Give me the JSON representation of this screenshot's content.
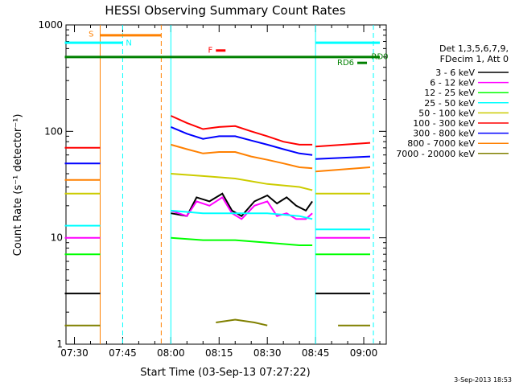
{
  "chart_data": {
    "type": "line",
    "title": "HESSI Observing Summary Count Rates",
    "xlabel": "Start Time (03-Sep-13 07:27:22)",
    "ylabel": "Count Rate (s⁻¹ detector⁻¹)",
    "yscale": "log",
    "ylim": [
      1,
      1000
    ],
    "xlim": [
      "07:27:22",
      "09:07:00"
    ],
    "grid": false,
    "legend_position": "right",
    "x_ticks": [
      "07:30",
      "07:45",
      "08:00",
      "08:15",
      "08:30",
      "08:45",
      "09:00"
    ],
    "y_ticks": [
      "1",
      "10",
      "100",
      "1000"
    ],
    "legend_header": [
      "Det 1,3,5,6,7,9,",
      "FDecim 1, Att 0"
    ],
    "series": [
      {
        "name": "3 - 6 keV",
        "color": "#000000",
        "segments": [
          {
            "x": [
              "07:27",
              "07:38"
            ],
            "y": [
              3.0,
              3.0
            ]
          },
          {
            "x": [
              "08:00",
              "08:05",
              "08:08",
              "08:12",
              "08:16",
              "08:19",
              "08:22",
              "08:26",
              "08:30",
              "08:33",
              "08:36",
              "08:39",
              "08:42",
              "08:44"
            ],
            "y": [
              17,
              16,
              24,
              22,
              26,
              18,
              16,
              22,
              25,
              21,
              24,
              20,
              18,
              22
            ]
          },
          {
            "x": [
              "08:45",
              "09:02"
            ],
            "y": [
              3.0,
              3.0
            ]
          }
        ]
      },
      {
        "name": "6 - 12 keV",
        "color": "#ff00ff",
        "segments": [
          {
            "x": [
              "07:27",
              "07:38"
            ],
            "y": [
              10,
              10
            ]
          },
          {
            "x": [
              "08:00",
              "08:05",
              "08:08",
              "08:12",
              "08:16",
              "08:19",
              "08:22",
              "08:26",
              "08:30",
              "08:33",
              "08:36",
              "08:39",
              "08:42",
              "08:44"
            ],
            "y": [
              18,
              16,
              22,
              20,
              24,
              17,
              15,
              20,
              22,
              16,
              17,
              15,
              15,
              17
            ]
          },
          {
            "x": [
              "08:45",
              "09:02"
            ],
            "y": [
              10,
              10
            ]
          }
        ]
      },
      {
        "name": "12 - 25 keV",
        "color": "#00ff00",
        "segments": [
          {
            "x": [
              "07:27",
              "07:38"
            ],
            "y": [
              7,
              7
            ]
          },
          {
            "x": [
              "08:00",
              "08:10",
              "08:20",
              "08:30",
              "08:40",
              "08:44"
            ],
            "y": [
              10,
              9.5,
              9.5,
              9,
              8.5,
              8.5
            ]
          },
          {
            "x": [
              "08:45",
              "09:02"
            ],
            "y": [
              7,
              7
            ]
          }
        ]
      },
      {
        "name": "25 - 50 keV",
        "color": "#00ffff",
        "segments": [
          {
            "x": [
              "07:27",
              "07:38"
            ],
            "y": [
              13,
              13
            ]
          },
          {
            "x": [
              "08:00",
              "08:10",
              "08:20",
              "08:30",
              "08:40",
              "08:44"
            ],
            "y": [
              18,
              17,
              17,
              17,
              16,
              15
            ]
          },
          {
            "x": [
              "08:45",
              "09:02"
            ],
            "y": [
              12,
              12
            ]
          }
        ]
      },
      {
        "name": "50 - 100 keV",
        "color": "#cccc00",
        "segments": [
          {
            "x": [
              "07:27",
              "07:38"
            ],
            "y": [
              26,
              26
            ]
          },
          {
            "x": [
              "08:00",
              "08:10",
              "08:20",
              "08:30",
              "08:40",
              "08:44"
            ],
            "y": [
              40,
              38,
              36,
              32,
              30,
              28
            ]
          },
          {
            "x": [
              "08:45",
              "09:02"
            ],
            "y": [
              26,
              26
            ]
          }
        ]
      },
      {
        "name": "100 - 300 keV",
        "color": "#ff0000",
        "segments": [
          {
            "x": [
              "07:27",
              "07:38"
            ],
            "y": [
              70,
              70
            ]
          },
          {
            "x": [
              "08:00",
              "08:05",
              "08:10",
              "08:15",
              "08:20",
              "08:25",
              "08:30",
              "08:35",
              "08:40",
              "08:44"
            ],
            "y": [
              140,
              120,
              105,
              110,
              112,
              100,
              90,
              80,
              75,
              75
            ]
          },
          {
            "x": [
              "08:45",
              "09:02"
            ],
            "y": [
              72,
              78
            ]
          }
        ]
      },
      {
        "name": "300 - 800 keV",
        "color": "#0000ff",
        "segments": [
          {
            "x": [
              "07:27",
              "07:38"
            ],
            "y": [
              50,
              50
            ]
          },
          {
            "x": [
              "08:00",
              "08:05",
              "08:10",
              "08:15",
              "08:20",
              "08:25",
              "08:30",
              "08:35",
              "08:40",
              "08:44"
            ],
            "y": [
              110,
              95,
              85,
              90,
              90,
              82,
              75,
              68,
              62,
              60
            ]
          },
          {
            "x": [
              "08:45",
              "09:02"
            ],
            "y": [
              55,
              58
            ]
          }
        ]
      },
      {
        "name": "800 - 7000 keV",
        "color": "#ff8000",
        "segments": [
          {
            "x": [
              "07:27",
              "07:38"
            ],
            "y": [
              35,
              35
            ]
          },
          {
            "x": [
              "08:00",
              "08:05",
              "08:10",
              "08:15",
              "08:20",
              "08:25",
              "08:30",
              "08:35",
              "08:40",
              "08:44"
            ],
            "y": [
              75,
              68,
              62,
              64,
              64,
              58,
              54,
              50,
              46,
              45
            ]
          },
          {
            "x": [
              "08:45",
              "09:02"
            ],
            "y": [
              42,
              46
            ]
          }
        ]
      },
      {
        "name": "7000 - 20000 keV",
        "color": "#808000",
        "segments": [
          {
            "x": [
              "07:27",
              "07:38"
            ],
            "y": [
              1.5,
              1.5
            ]
          },
          {
            "x": [
              "08:14",
              "08:20",
              "08:26",
              "08:30"
            ],
            "y": [
              1.6,
              1.7,
              1.6,
              1.5
            ]
          },
          {
            "x": [
              "08:52",
              "09:02"
            ],
            "y": [
              1.5,
              1.5
            ]
          }
        ]
      }
    ],
    "annotations": [
      {
        "label": "S",
        "color": "#ff8000"
      },
      {
        "label": "N",
        "color": "#00ffff"
      },
      {
        "label": "F",
        "color": "#ff0000"
      },
      {
        "label": "RD0",
        "color": "#008000"
      },
      {
        "label": "RD6",
        "color": "#008000"
      }
    ],
    "vertical_lines": [
      {
        "x": "07:38",
        "color": "#ff8000",
        "style": "solid"
      },
      {
        "x": "07:45",
        "color": "#00ffff",
        "style": "dashed"
      },
      {
        "x": "07:57",
        "color": "#ff8000",
        "style": "dashed"
      },
      {
        "x": "08:00",
        "color": "#00ffff",
        "style": "solid"
      },
      {
        "x": "08:45",
        "color": "#00ffff",
        "style": "solid"
      },
      {
        "x": "09:03",
        "color": "#00ffff",
        "style": "dashed"
      }
    ],
    "footer_date": "3-Sep-2013 18:53"
  }
}
